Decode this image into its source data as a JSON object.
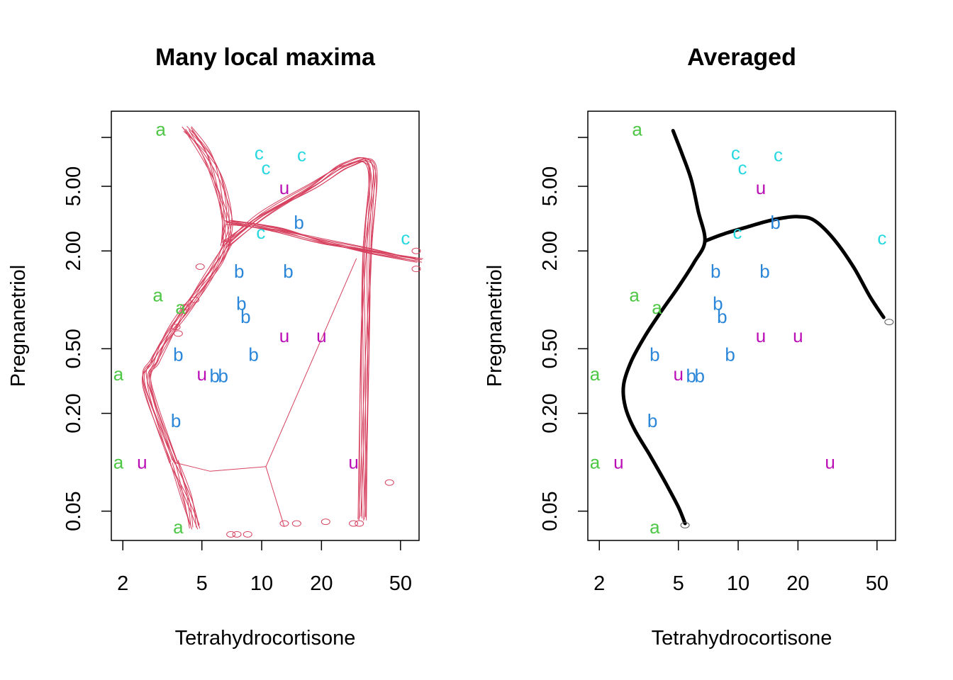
{
  "chart_data": [
    {
      "type": "scatter",
      "title": "Many local maxima",
      "xlabel": "Tetrahydrocortisone",
      "ylabel": "Pregnanetriol",
      "x_scale": "log",
      "y_scale": "log",
      "xlim": [
        1.75,
        62
      ],
      "ylim": [
        0.033,
        14.5
      ],
      "x_ticks": [
        2,
        5,
        10,
        20,
        50
      ],
      "x_tick_labels": [
        "2",
        "5",
        "10",
        "20",
        "50"
      ],
      "y_ticks": [
        0.05,
        0.2,
        0.5,
        2,
        5
      ],
      "y_tick_labels": [
        "0.05",
        "0.20",
        "0.50",
        "2.00",
        "5.00"
      ],
      "grid": false,
      "legend": "none",
      "colors": {
        "a": "#4dc745",
        "b": "#2a86d9",
        "c": "#28d8e0",
        "u": "#bb0fb6",
        "boundary": "#d6405e"
      },
      "points": [
        {
          "label": "a",
          "x": 3.1,
          "y": 11.24
        },
        {
          "label": "a",
          "x": 3.0,
          "y": 1.07
        },
        {
          "label": "a",
          "x": 1.9,
          "y": 0.35
        },
        {
          "label": "a",
          "x": 1.9,
          "y": 0.1
        },
        {
          "label": "a",
          "x": 3.8,
          "y": 0.04
        },
        {
          "label": "a",
          "x": 3.9,
          "y": 0.9
        },
        {
          "label": "b",
          "x": 7.7,
          "y": 1.5
        },
        {
          "label": "b",
          "x": 13.6,
          "y": 1.5
        },
        {
          "label": "b",
          "x": 7.9,
          "y": 0.95
        },
        {
          "label": "b",
          "x": 8.3,
          "y": 0.79
        },
        {
          "label": "b",
          "x": 15.4,
          "y": 3.0
        },
        {
          "label": "b",
          "x": 3.8,
          "y": 0.46
        },
        {
          "label": "b",
          "x": 9.1,
          "y": 0.46
        },
        {
          "label": "b",
          "x": 5.8,
          "y": 0.34
        },
        {
          "label": "b",
          "x": 6.4,
          "y": 0.34
        },
        {
          "label": "b",
          "x": 3.7,
          "y": 0.18
        },
        {
          "label": "c",
          "x": 9.7,
          "y": 8.0
        },
        {
          "label": "c",
          "x": 10.5,
          "y": 6.5
        },
        {
          "label": "c",
          "x": 15.9,
          "y": 7.8
        },
        {
          "label": "c",
          "x": 9.9,
          "y": 2.6
        },
        {
          "label": "c",
          "x": 53.0,
          "y": 2.4
        },
        {
          "label": "u",
          "x": 13.0,
          "y": 4.9
        },
        {
          "label": "u",
          "x": 13.0,
          "y": 0.6
        },
        {
          "label": "u",
          "x": 20.0,
          "y": 0.6
        },
        {
          "label": "u",
          "x": 5.0,
          "y": 0.35
        },
        {
          "label": "u",
          "x": 2.5,
          "y": 0.1
        },
        {
          "label": "u",
          "x": 29.0,
          "y": 0.1
        }
      ]
    },
    {
      "type": "scatter",
      "title": "Averaged",
      "xlabel": "Tetrahydrocortisone",
      "ylabel": "Pregnanetriol",
      "x_scale": "log",
      "y_scale": "log",
      "xlim": [
        1.75,
        62
      ],
      "ylim": [
        0.033,
        14.5
      ],
      "x_ticks": [
        2,
        5,
        10,
        20,
        50
      ],
      "x_tick_labels": [
        "2",
        "5",
        "10",
        "20",
        "50"
      ],
      "y_ticks": [
        0.05,
        0.2,
        0.5,
        2,
        5
      ],
      "y_tick_labels": [
        "0.05",
        "0.20",
        "0.50",
        "2.00",
        "5.00"
      ],
      "grid": false,
      "legend": "none",
      "colors": {
        "a": "#4dc745",
        "b": "#2a86d9",
        "c": "#28d8e0",
        "u": "#bb0fb6",
        "boundary": "#000000"
      },
      "points": [
        {
          "label": "a",
          "x": 3.1,
          "y": 11.24
        },
        {
          "label": "a",
          "x": 3.0,
          "y": 1.07
        },
        {
          "label": "a",
          "x": 1.9,
          "y": 0.35
        },
        {
          "label": "a",
          "x": 1.9,
          "y": 0.1
        },
        {
          "label": "a",
          "x": 3.8,
          "y": 0.04
        },
        {
          "label": "a",
          "x": 3.9,
          "y": 0.9
        },
        {
          "label": "b",
          "x": 7.7,
          "y": 1.5
        },
        {
          "label": "b",
          "x": 13.6,
          "y": 1.5
        },
        {
          "label": "b",
          "x": 7.9,
          "y": 0.95
        },
        {
          "label": "b",
          "x": 8.3,
          "y": 0.79
        },
        {
          "label": "b",
          "x": 15.4,
          "y": 3.0
        },
        {
          "label": "b",
          "x": 3.8,
          "y": 0.46
        },
        {
          "label": "b",
          "x": 9.1,
          "y": 0.46
        },
        {
          "label": "b",
          "x": 5.8,
          "y": 0.34
        },
        {
          "label": "b",
          "x": 6.4,
          "y": 0.34
        },
        {
          "label": "b",
          "x": 3.7,
          "y": 0.18
        },
        {
          "label": "c",
          "x": 9.7,
          "y": 8.0
        },
        {
          "label": "c",
          "x": 10.5,
          "y": 6.5
        },
        {
          "label": "c",
          "x": 15.9,
          "y": 7.8
        },
        {
          "label": "c",
          "x": 9.9,
          "y": 2.6
        },
        {
          "label": "c",
          "x": 53.0,
          "y": 2.4
        },
        {
          "label": "u",
          "x": 13.0,
          "y": 4.9
        },
        {
          "label": "u",
          "x": 13.0,
          "y": 0.6
        },
        {
          "label": "u",
          "x": 20.0,
          "y": 0.6
        },
        {
          "label": "u",
          "x": 5.0,
          "y": 0.35
        },
        {
          "label": "u",
          "x": 2.5,
          "y": 0.1
        },
        {
          "label": "u",
          "x": 29.0,
          "y": 0.1
        }
      ]
    }
  ]
}
